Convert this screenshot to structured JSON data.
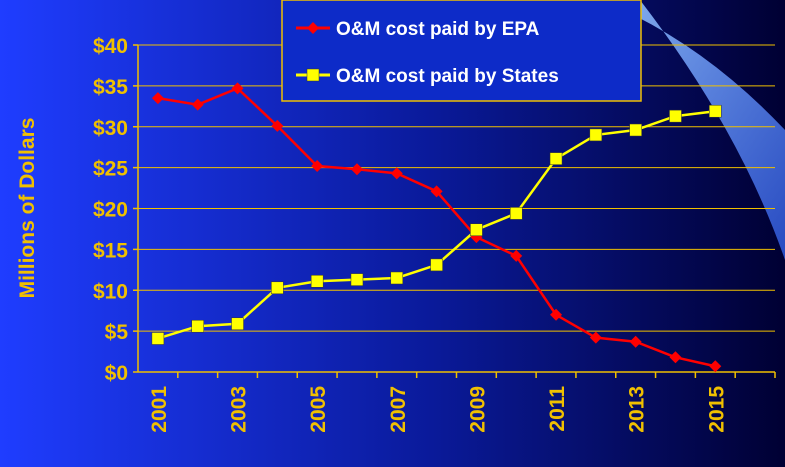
{
  "chart_data": {
    "type": "line",
    "y_label": "Millions of Dollars",
    "categories": [
      "2001",
      null,
      "2003",
      null,
      "2005",
      null,
      "2007",
      null,
      "2009",
      null,
      "2011",
      null,
      "2013",
      null,
      "2015",
      null
    ],
    "series": [
      {
        "name": "O&M cost paid by EPA",
        "color": "#ff0000",
        "marker": "diamond",
        "values": [
          33.5,
          32.7,
          34.7,
          30.1,
          25.2,
          24.8,
          24.3,
          22.1,
          16.5,
          14.2,
          7.0,
          4.2,
          3.7,
          1.8,
          0.7,
          null
        ]
      },
      {
        "name": "O&M cost paid by States",
        "color": "#ffff00",
        "marker": "square",
        "values": [
          4.1,
          5.6,
          5.9,
          10.3,
          11.1,
          11.3,
          11.5,
          13.1,
          17.4,
          19.4,
          26.1,
          29.0,
          29.6,
          31.3,
          31.9,
          null
        ]
      }
    ],
    "ylim": [
      0,
      40
    ],
    "yticks": [
      {
        "value": 0,
        "label": "$0"
      },
      {
        "value": 5,
        "label": "$5"
      },
      {
        "value": 10,
        "label": "$10"
      },
      {
        "value": 15,
        "label": "$15"
      },
      {
        "value": 20,
        "label": "$20"
      },
      {
        "value": 25,
        "label": "$25"
      },
      {
        "value": 30,
        "label": "$30"
      },
      {
        "value": 35,
        "label": "$35"
      },
      {
        "value": 40,
        "label": "$40"
      }
    ],
    "grid": true,
    "legend": "top"
  }
}
